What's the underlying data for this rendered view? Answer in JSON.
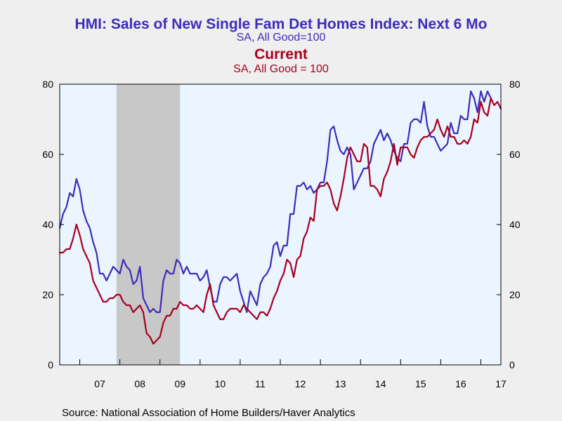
{
  "chart_data": {
    "type": "line",
    "title": "HMI: Sales of New Single Fam Det Homes Index: Next 6 Mo",
    "title_sub": "SA, All Good=100",
    "title2": "Current",
    "title2_sub": "SA, All Good = 100",
    "source": "Source:  National Association of Home Builders/Haver Analytics",
    "ylim": [
      0,
      80
    ],
    "yticks": [
      "0",
      "20",
      "40",
      "60",
      "80"
    ],
    "xlim": [
      2006.5,
      2017.5
    ],
    "xtick_labels": [
      "07",
      "08",
      "09",
      "10",
      "11",
      "12",
      "13",
      "14",
      "15",
      "16",
      "17"
    ],
    "recession": [
      2007.917,
      2009.5
    ],
    "grid": false,
    "colors": {
      "next6": "#3d2db8",
      "current": "#a8001e",
      "plot_bg": "#eaf5ff",
      "shade": "#c8c8c8"
    },
    "x_start": 2006.5,
    "x_step_months": 1,
    "series": [
      {
        "name": "Next 6 Mo",
        "values": [
          39,
          43,
          45,
          49,
          48,
          53,
          50,
          44,
          41,
          39,
          35,
          32,
          26,
          26,
          24,
          26,
          28,
          27,
          26,
          30,
          28,
          27,
          23,
          24,
          28,
          19,
          17,
          15,
          16,
          15,
          15,
          24,
          27,
          26,
          26,
          30,
          29,
          26,
          28,
          26,
          26,
          26,
          24,
          25,
          27,
          22,
          18,
          18,
          23,
          25,
          25,
          24,
          25,
          26,
          21,
          18,
          15,
          21,
          19,
          17,
          23,
          25,
          26,
          28,
          34,
          35,
          31,
          34,
          34,
          43,
          43,
          51,
          51,
          52,
          50,
          51,
          49,
          50,
          52,
          52,
          58,
          67,
          68,
          64,
          61,
          60,
          62,
          60,
          50,
          52,
          54,
          56,
          56,
          58,
          63,
          65,
          67,
          64,
          66,
          64,
          61,
          59,
          58,
          63,
          63,
          69,
          70,
          70,
          69,
          75,
          68,
          65,
          65,
          63,
          61,
          62,
          63,
          69,
          66,
          66,
          71,
          70,
          70,
          78,
          76,
          72,
          78,
          75,
          78,
          76
        ]
      },
      {
        "name": "Current",
        "values": [
          32,
          32,
          33,
          33,
          36,
          40,
          37,
          33,
          31,
          29,
          24,
          22,
          20,
          18,
          18,
          19,
          19,
          20,
          20,
          18,
          17,
          17,
          15,
          16,
          17,
          15,
          9,
          8,
          6,
          7,
          8,
          12,
          14,
          14,
          16,
          16,
          18,
          17,
          17,
          16,
          16,
          17,
          16,
          15,
          20,
          23,
          17,
          15,
          13,
          13,
          15,
          16,
          16,
          16,
          15,
          17,
          16,
          15,
          14,
          13,
          15,
          15,
          14,
          16,
          19,
          21,
          24,
          26,
          30,
          29,
          25,
          30,
          31,
          36,
          38,
          42,
          41,
          50,
          51,
          51,
          52,
          50,
          46,
          44,
          48,
          53,
          59,
          62,
          60,
          58,
          58,
          63,
          62,
          51,
          51,
          50,
          48,
          53,
          55,
          58,
          63,
          57,
          62,
          62,
          62,
          60,
          59,
          62,
          64,
          65,
          65,
          66,
          67,
          70,
          67,
          65,
          68,
          65,
          65,
          63,
          63,
          64,
          63,
          65,
          70,
          69,
          75,
          72,
          71,
          76,
          74,
          75,
          73
        ]
      }
    ]
  }
}
